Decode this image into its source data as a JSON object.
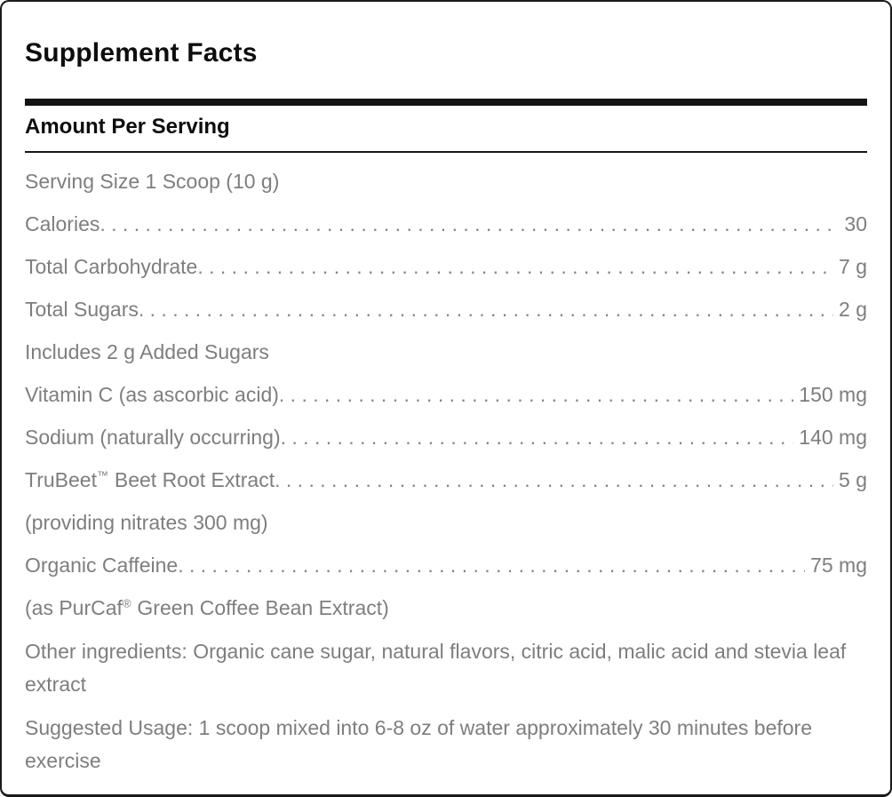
{
  "panel": {
    "title": "Supplement Facts",
    "section_header": "Amount Per Serving"
  },
  "rows": [
    {
      "label": "Serving Size 1 Scoop (10 g)",
      "value": "",
      "leader": false
    },
    {
      "label": "Calories",
      "value": "30",
      "leader": true
    },
    {
      "label": "Total Carbohydrate",
      "value": "7 g",
      "leader": true
    },
    {
      "label": "Total Sugars",
      "value": "2 g",
      "leader": true
    },
    {
      "label": "Includes 2 g Added Sugars",
      "value": "",
      "leader": false
    },
    {
      "label": "Vitamin C (as ascorbic acid)",
      "value": "150 mg",
      "leader": true
    },
    {
      "label": "Sodium (naturally occurring)",
      "value": "140 mg",
      "leader": true
    },
    {
      "label": "TruBeet",
      "label_sup": "™",
      "label_rest": " Beet Root Extract",
      "value": "5 g",
      "leader": true
    },
    {
      "label": "(providing nitrates 300 mg)",
      "value": "",
      "leader": false
    },
    {
      "label": "Organic Caffeine",
      "value": "75 mg",
      "leader": true
    },
    {
      "label": "(as PurCaf",
      "label_sup": "®",
      "label_rest": " Green Coffee Bean Extract)",
      "value": "",
      "leader": false
    }
  ],
  "paragraphs": [
    {
      "text": "Other ingredients: Organic cane sugar, natural flavors, citric acid, malic acid and stevia leaf extract"
    },
    {
      "text": "Suggested Usage: 1 scoop mixed into 6-8 oz of water approximately 30 minutes before exercise"
    }
  ],
  "colors": {
    "heading_black": "#0d0d0d",
    "body_gray": "#7e7e7e",
    "border_black": "#1a1a1a",
    "background": "#ffffff"
  }
}
